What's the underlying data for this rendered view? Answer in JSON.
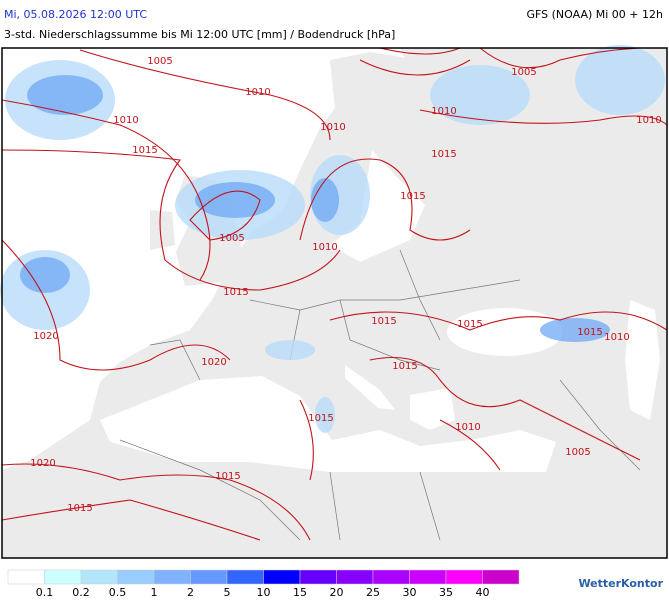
{
  "header": {
    "datetime": "Mi, 05.08.2026 12:00 UTC",
    "model": "GFS (NOAA) Mi 00 + 12h",
    "subtitle": "3-std. Niederschlagssumme bis Mi 12:00 UTC [mm] / Bodendruck [hPa]"
  },
  "isobar_labels": [
    1005,
    1010,
    1010,
    1015,
    1010,
    1005,
    1010,
    1010,
    1015,
    1015,
    1005,
    1010,
    1015,
    1020,
    1020,
    1015,
    1015,
    1015,
    1010,
    1015,
    1015,
    1010,
    1005,
    1020,
    1015,
    1015
  ],
  "legend": {
    "colors": [
      "#ffffff",
      "#ccffff",
      "#b3e6fa",
      "#99ccff",
      "#80b3ff",
      "#6699ff",
      "#3366ff",
      "#0000ff",
      "#6600ff",
      "#8800ff",
      "#aa00ff",
      "#cc00ff",
      "#ff00ff",
      "#cc00cc"
    ],
    "labels": [
      0.1,
      0.2,
      0.5,
      1,
      2,
      5,
      10,
      15,
      20,
      25,
      30,
      35,
      40
    ]
  },
  "logo": "WetterKontor"
}
